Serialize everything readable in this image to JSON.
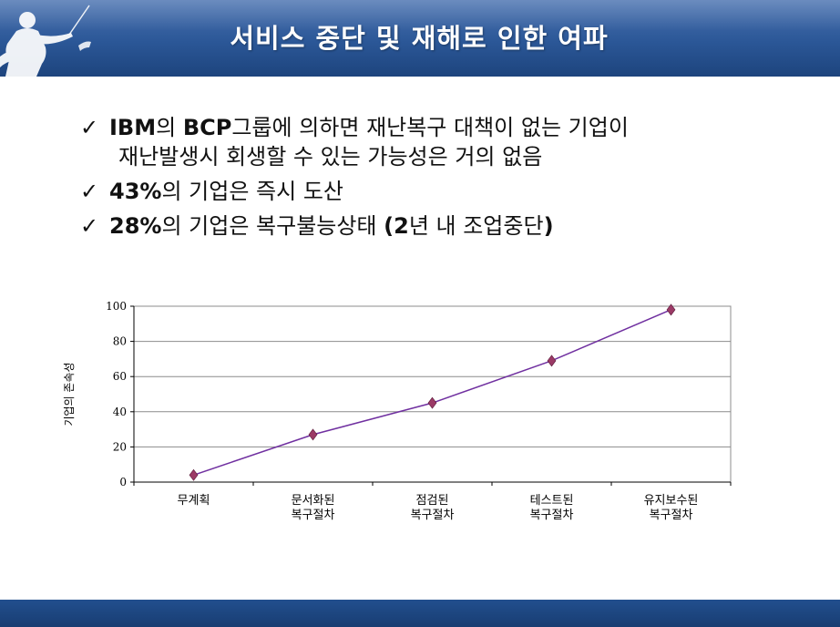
{
  "header": {
    "title": "서비스 중단 및 재해로 인한 여파"
  },
  "bullets": [
    {
      "check": "✓",
      "parts": [
        {
          "t": "IBM",
          "b": true
        },
        {
          "t": "의 ",
          "b": false
        },
        {
          "t": "BCP",
          "b": true
        },
        {
          "t": "그룹에 의하면 재난복구 대책이 없는 기업이",
          "b": false
        }
      ],
      "line2": "재난발생시 회생할 수 있는 가능성은 거의 없음"
    },
    {
      "check": "✓",
      "parts": [
        {
          "t": "43%",
          "b": true
        },
        {
          "t": "의 기업은 즉시 도산",
          "b": false
        }
      ]
    },
    {
      "check": "✓",
      "parts": [
        {
          "t": "28%",
          "b": true
        },
        {
          "t": "의 기업은 복구불능상태 ",
          "b": false
        },
        {
          "t": "(2",
          "b": true
        },
        {
          "t": "년 내 조업중단",
          "b": false
        },
        {
          "t": ")",
          "b": true
        }
      ]
    }
  ],
  "chart_data": {
    "type": "line",
    "categories": [
      [
        "무계획"
      ],
      [
        "문서화된",
        "복구절차"
      ],
      [
        "점검된",
        "복구절차"
      ],
      [
        "테스트된",
        "복구절차"
      ],
      [
        "유지보수된",
        "복구절차"
      ]
    ],
    "series": [
      {
        "values": [
          4,
          27,
          45,
          69,
          98
        ]
      }
    ],
    "ylabel": "기업의 존속성",
    "ylim": [
      0,
      100
    ],
    "yticks": [
      0,
      20,
      40,
      60,
      80,
      100
    ],
    "grid": true,
    "marker": "diamond",
    "colors": {
      "line": "#7030a0",
      "marker": "#9b3a66",
      "grid": "#8c8c8c",
      "plot_bg": "#ffffff"
    }
  }
}
